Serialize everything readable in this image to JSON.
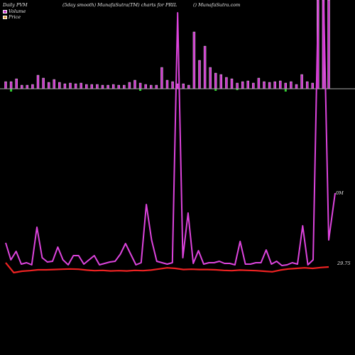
{
  "header": {
    "left": "Daily PVM",
    "mid": "(5day smooth) MunafaSutra(TM) charts for PRIL",
    "right": "() MunafaSutra.com"
  },
  "legend": [
    {
      "label": "Volume",
      "color": "#cc33cc"
    },
    {
      "label": "Price",
      "color": "#e0a040"
    }
  ],
  "right_labels": {
    "volume": "0M",
    "price": "29.75"
  },
  "chart_data": {
    "type": "bar",
    "title": "",
    "series": [
      {
        "kind": "volume_bars",
        "color": "#cc33cc",
        "values": [
          10,
          10,
          14,
          5,
          5,
          6,
          19,
          15,
          9,
          13,
          9,
          7,
          8,
          7,
          8,
          6,
          6,
          6,
          5,
          5,
          6,
          5,
          5,
          9,
          12,
          8,
          6,
          5,
          5,
          30,
          12,
          10,
          7,
          7,
          5,
          80,
          40,
          60,
          30,
          22,
          20,
          16,
          14,
          8,
          10,
          11,
          8,
          15,
          10,
          9,
          10,
          11,
          8,
          10,
          6,
          20,
          10,
          8,
          500,
          500,
          500
        ]
      },
      {
        "kind": "volume_bars_negative",
        "color": "#33cc33",
        "values": [
          0,
          4,
          0,
          0,
          0,
          0,
          0,
          0,
          0,
          0,
          0,
          0,
          0,
          0,
          0,
          0,
          0,
          0,
          0,
          0,
          0,
          0,
          0,
          0,
          0,
          3,
          0,
          0,
          0,
          0,
          0,
          0,
          0,
          0,
          0,
          0,
          0,
          0,
          0,
          3,
          0,
          0,
          0,
          2,
          0,
          0,
          0,
          0,
          0,
          0,
          0,
          0,
          4,
          0,
          0,
          0,
          0,
          0,
          0,
          0,
          0
        ]
      },
      {
        "name": "",
        "kind": "volume_line",
        "color": "#dd44dd",
        "values": [
          36,
          12,
          24,
          6,
          8,
          5,
          58,
          15,
          9,
          10,
          30,
          12,
          5,
          18,
          18,
          6,
          12,
          18,
          5,
          7,
          9,
          10,
          20,
          35,
          20,
          5,
          8,
          90,
          40,
          10,
          8,
          6,
          8,
          360,
          15,
          78,
          7,
          25,
          6,
          8,
          8,
          10,
          7,
          7,
          5,
          38,
          6,
          6,
          8,
          8,
          26,
          6,
          10,
          4,
          5,
          8,
          6,
          60,
          5,
          12,
          500,
          460,
          40
        ]
      },
      {
        "name": "",
        "kind": "price_line",
        "color": "#ee2222",
        "values": [
          29.9,
          29.55,
          29.6,
          29.62,
          29.65,
          29.65,
          29.66,
          29.67,
          29.68,
          29.67,
          29.64,
          29.62,
          29.63,
          29.61,
          29.62,
          29.61,
          29.63,
          29.62,
          29.64,
          29.68,
          29.72,
          29.7,
          29.66,
          29.67,
          29.66,
          29.66,
          29.65,
          29.63,
          29.62,
          29.64,
          29.63,
          29.62,
          29.6,
          29.58,
          29.64,
          29.68,
          29.7,
          29.72,
          29.7,
          29.73,
          29.75
        ]
      }
    ]
  }
}
